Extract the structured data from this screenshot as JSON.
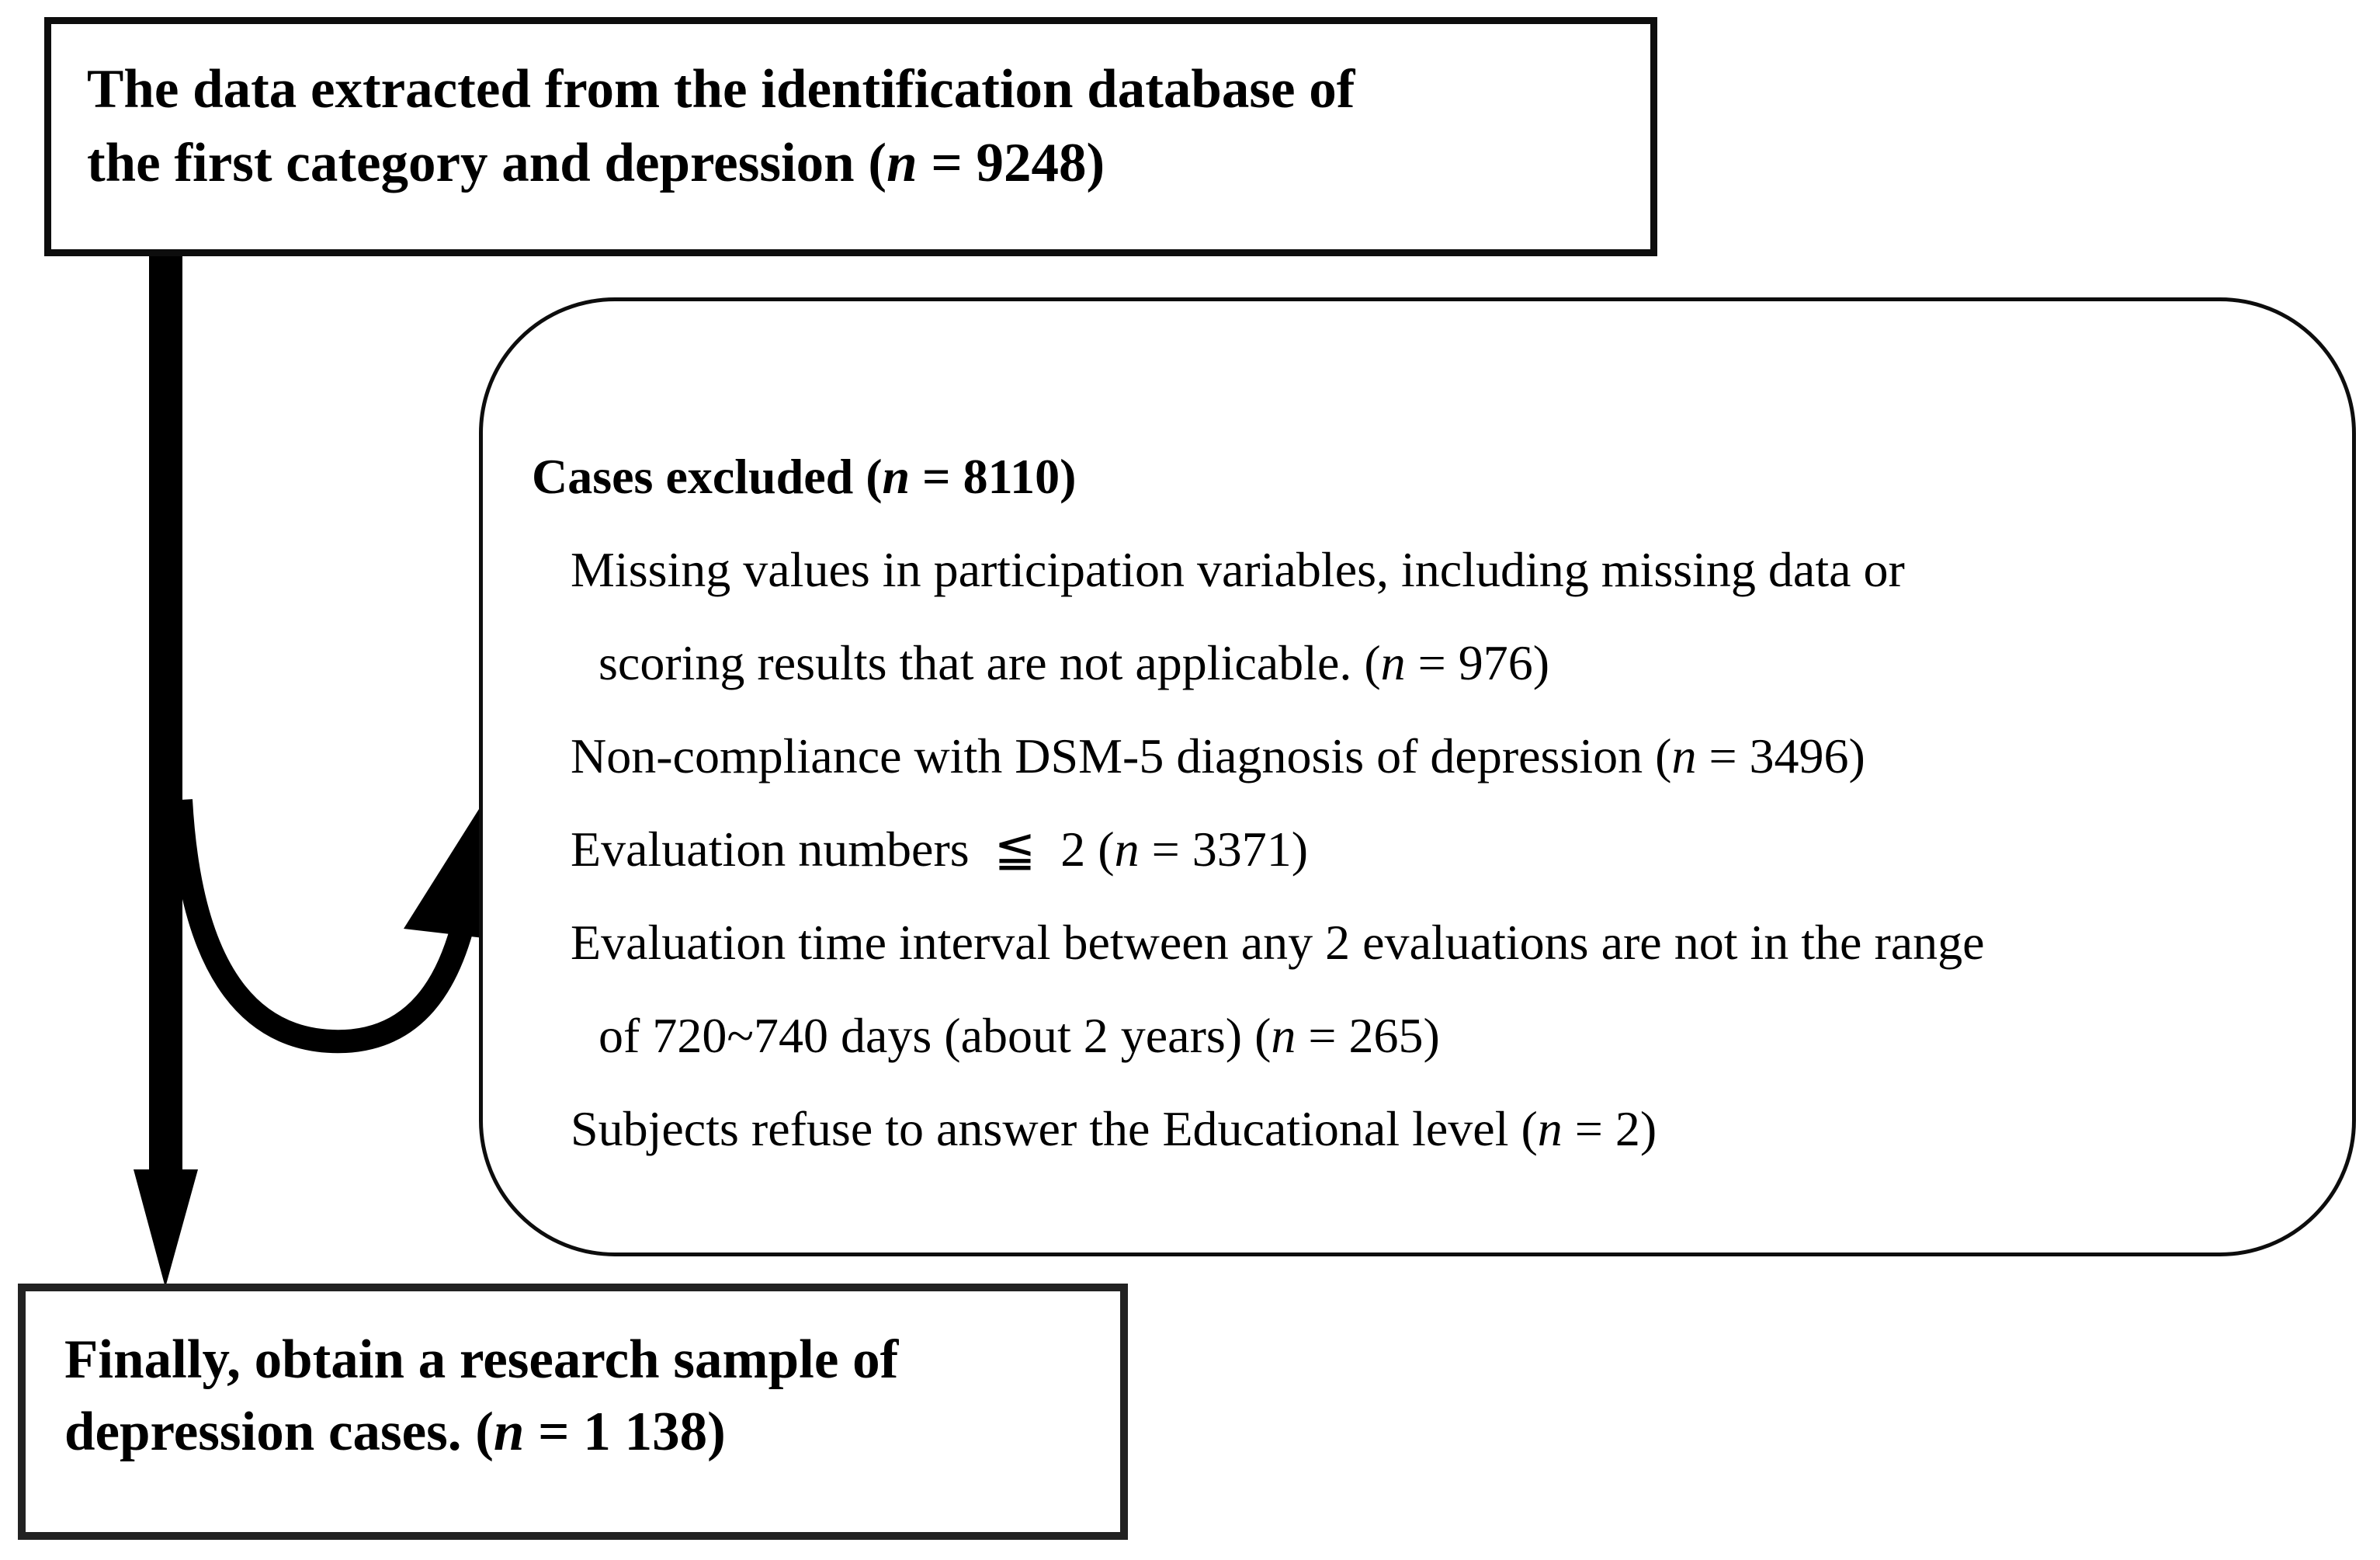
{
  "figure": {
    "type": "flowchart",
    "colors": {
      "ink": "#000000",
      "background": "#ffffff"
    },
    "top_box": {
      "lines": [
        "The data extracted from the identification database of",
        "the first category and depression (n = 9248)"
      ]
    },
    "excluded_box": {
      "title": "Cases excluded (n = 8110)",
      "items": [
        {
          "text": "Missing values in participation variables, including missing data or",
          "indent": 1
        },
        {
          "text": "scoring results that are not applicable. (n = 976)",
          "indent": 2
        },
        {
          "text": "Non-compliance with DSM-5 diagnosis of depression (n = 3496)",
          "indent": 1
        },
        {
          "text": "Evaluation numbers  ≦  2 (n = 3371)",
          "indent": 1
        },
        {
          "text": "Evaluation time interval between any 2 evaluations are not in the range",
          "indent": 1
        },
        {
          "text": "of 720~740 days (about 2 years) (n = 265)",
          "indent": 2
        },
        {
          "text": "Subjects refuse to answer the Educational level (n = 2)",
          "indent": 1
        }
      ]
    },
    "final_box": {
      "lines": [
        "Finally, obtain a research sample of",
        "depression cases. (n = 1 138)"
      ]
    }
  }
}
